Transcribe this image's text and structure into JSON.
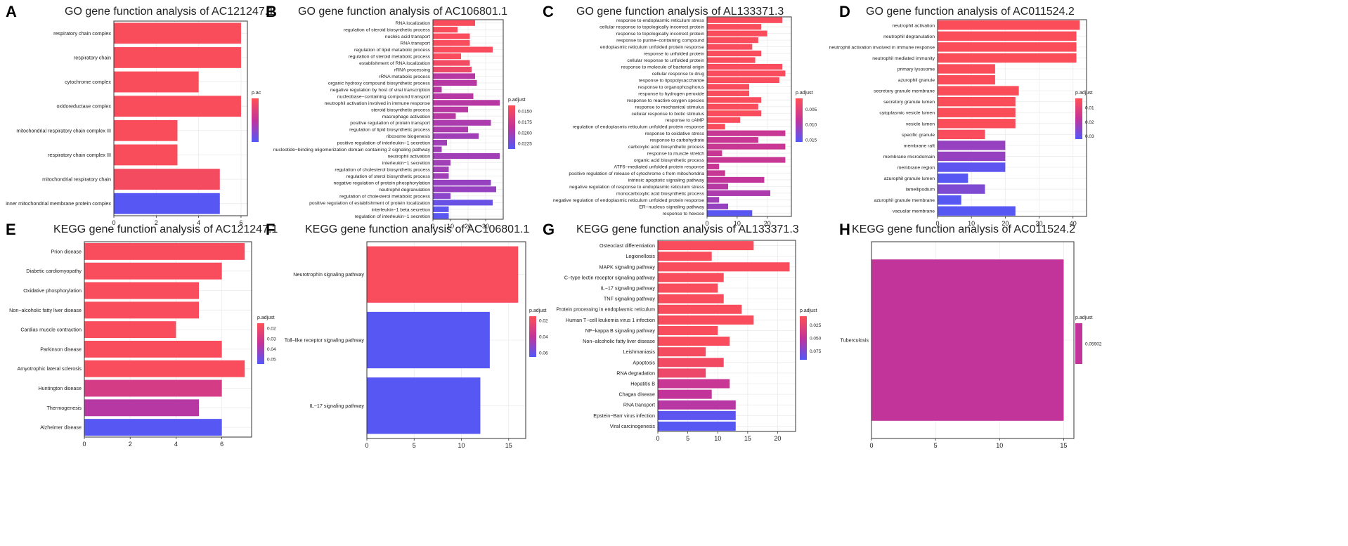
{
  "colors": {
    "high": "#ff4f55",
    "mid": "#c2349a",
    "low": "#5358f8",
    "grid": "#ebebeb",
    "frame": "#333333"
  },
  "chart_data": [
    {
      "type": "bar",
      "letter": "A",
      "title": "GO gene function analysis of AC121247.1",
      "categories": [
        "respiratory chain complex",
        "respiratory chain",
        "cytochrome complex",
        "oxidoreductase complex",
        "mitochondrial respiratory chain complex III",
        "respiratory chain complex III",
        "mitochondrial respiratory chain",
        "inner mitochondrial membrane protein complex"
      ],
      "values": [
        6,
        6,
        4,
        6,
        3,
        3,
        5,
        5
      ],
      "color_pos": [
        0.04,
        0.04,
        0.04,
        0.04,
        0.04,
        0.04,
        0.08,
        0.98
      ],
      "xlim": [
        0,
        6.3
      ],
      "xticks": [
        0,
        2,
        4,
        6
      ],
      "legend": {
        "title": "p.ac",
        "ticks": [],
        "tick_pos": []
      }
    },
    {
      "type": "bar",
      "letter": "B",
      "title": "GO gene function analysis of AC106801.1",
      "categories": [
        "RNA localization",
        "regulation of steroid biosynthetic process",
        "nucleic acid transport",
        "RNA transport",
        "regulation of lipid metabolic process",
        "regulation of steroid metabolic process",
        "establishment of RNA localization",
        "rRNA processing",
        "rRNA metabolic process",
        "organic hydroxy compound biosynthetic process",
        "negative regulation by host of viral transcription",
        "nucleobase−containing compound transport",
        "neutrophil activation involved in immune response",
        "steroid biosynthetic process",
        "macrophage activation",
        "positive regulation of protein transport",
        "regulation of lipid biosynthetic process",
        "ribosome biogenesis",
        "positive regulation of interleukin−1 secretion",
        "nucleotide−binding oligomerization domain containing 2 signaling pathway",
        "neutrophil activation",
        "interleukin−1 secretion",
        "regulation of cholesterol biosynthetic process",
        "regulation of sterol biosynthetic process",
        "negative regulation of protein phosphorylation",
        "neutrophil degranulation",
        "regulation of cholesterol metabolic process",
        "positive regulation of establishment of protein localization",
        "interleukin−1 beta secretion",
        "regulation of interleukin−1 secretion"
      ],
      "values": [
        24,
        14,
        21,
        21,
        34,
        16,
        21,
        22,
        24,
        25,
        5,
        23,
        38,
        20,
        13,
        33,
        20,
        26,
        8,
        5,
        38,
        10,
        9,
        9,
        33,
        36,
        10,
        34,
        9,
        9
      ],
      "color_pos": [
        0.05,
        0.05,
        0.05,
        0.05,
        0.05,
        0.05,
        0.1,
        0.15,
        0.55,
        0.55,
        0.55,
        0.55,
        0.55,
        0.55,
        0.55,
        0.6,
        0.6,
        0.65,
        0.65,
        0.65,
        0.65,
        0.65,
        0.65,
        0.65,
        0.7,
        0.7,
        0.75,
        0.9,
        0.95,
        0.97
      ],
      "xlim": [
        0,
        40
      ],
      "xticks": [
        0,
        10,
        20,
        30
      ],
      "legend": {
        "title": "p.adjust",
        "ticks": [
          "0.0150",
          "0.0175",
          "0.0200",
          "0.0225"
        ],
        "tick_pos": [
          0.13,
          0.38,
          0.63,
          0.87
        ]
      }
    },
    {
      "type": "bar",
      "letter": "C",
      "title": "GO gene function analysis of AL133371.3",
      "categories": [
        "response to endoplasmic reticulum stress",
        "cellular response to topologically incorrect protein",
        "response to topologically incorrect protein",
        "response to purine−containing compound",
        "endoplasmic reticulum unfolded protein response",
        "response to unfolded protein",
        "cellular response to unfolded protein",
        "response to molecule of bacterial origin",
        "cellular response to drug",
        "response to lipopolysaccharide",
        "response to organophosphorus",
        "response to hydrogen peroxide",
        "response to reactive oxygen species",
        "response to mechanical stimulus",
        "cellular response to biotic stimulus",
        "response to cAMP",
        "regulation of endoplasmic reticulum unfolded protein response",
        "response to oxidative stress",
        "response to carbohydrate",
        "carboxylic acid biosynthetic process",
        "response to muscle stretch",
        "organic acid biosynthetic process",
        "ATF6−mediated unfolded protein response",
        "positive regulation of release of cytochrome c from mitochondria",
        "intrinsic apoptotic signaling pathway",
        "negative regulation of response to endoplasmic reticulum stress",
        "monocarboxylic acid biosynthetic process",
        "negative regulation of endoplasmic reticulum unfolded protein response",
        "ER−nucleus signaling pathway",
        "response to hexose"
      ],
      "values": [
        25,
        18,
        20,
        17,
        15,
        18,
        16,
        25,
        26,
        24,
        14,
        14,
        18,
        17,
        18,
        11,
        6,
        26,
        17,
        26,
        5,
        26,
        4,
        6,
        19,
        7,
        21,
        4,
        7,
        15
      ],
      "color_pos": [
        0.05,
        0.05,
        0.05,
        0.05,
        0.05,
        0.05,
        0.05,
        0.05,
        0.05,
        0.05,
        0.05,
        0.05,
        0.05,
        0.05,
        0.05,
        0.05,
        0.05,
        0.45,
        0.45,
        0.45,
        0.45,
        0.45,
        0.45,
        0.45,
        0.5,
        0.55,
        0.6,
        0.65,
        0.7,
        0.97
      ],
      "xlim": [
        0,
        28
      ],
      "xticks": [
        0,
        10,
        20
      ],
      "legend": {
        "title": "p.adjust",
        "ticks": [
          "0.005",
          "0.010",
          "0.015"
        ],
        "tick_pos": [
          0.25,
          0.6,
          0.95
        ]
      }
    },
    {
      "type": "bar",
      "letter": "D",
      "title": "GO gene function analysis of AC011524.2",
      "categories": [
        "neutrophil activation",
        "neutrophil degranulation",
        "neutrophil activation involved in immune response",
        "neutrophil mediated immunity",
        "primary lysosome",
        "azurophil granule",
        "secretory granule membrane",
        "secretory granule lumen",
        "cytoplasmic vesicle lumen",
        "vesicle lumen",
        "specific granule",
        "membrane raft",
        "membrane microdomain",
        "membrane region",
        "azurophil granule lumen",
        "lamellipodium",
        "azurophil granule membrane",
        "vacuolar membrane"
      ],
      "values": [
        42,
        41,
        41,
        41,
        17,
        17,
        24,
        23,
        23,
        23,
        14,
        20,
        20,
        20,
        9,
        14,
        7,
        23
      ],
      "color_pos": [
        0.03,
        0.03,
        0.03,
        0.03,
        0.03,
        0.03,
        0.03,
        0.03,
        0.03,
        0.03,
        0.05,
        0.7,
        0.7,
        0.95,
        0.98,
        0.8,
        0.98,
        0.98
      ],
      "xlim": [
        0,
        44
      ],
      "xticks": [
        0,
        10,
        20,
        30,
        40
      ],
      "legend": {
        "title": "p.adjust",
        "ticks": [
          "0.01",
          "0.02",
          "0.03"
        ],
        "tick_pos": [
          0.22,
          0.58,
          0.92
        ]
      }
    },
    {
      "type": "bar",
      "letter": "E",
      "title": "KEGG gene function analysis of AC121247.1",
      "categories": [
        "Prion disease",
        "Diabetic cardiomyopathy",
        "Oxidative phosphorylation",
        "Non−alcoholic fatty liver disease",
        "Cardiac muscle contraction",
        "Parkinson disease",
        "Amyotrophic lateral sclerosis",
        "Huntington disease",
        "Thermogenesis",
        "Alzheimer disease"
      ],
      "values": [
        7,
        6,
        5,
        5,
        4,
        6,
        7,
        6,
        5,
        6
      ],
      "color_pos": [
        0.05,
        0.05,
        0.05,
        0.05,
        0.05,
        0.05,
        0.05,
        0.35,
        0.55,
        0.98
      ],
      "xlim": [
        0,
        7.3
      ],
      "xticks": [
        0,
        2,
        4,
        6
      ],
      "legend": {
        "title": "p.adjust",
        "ticks": [
          "0.02",
          "0.03",
          "0.04",
          "0.05"
        ],
        "tick_pos": [
          0.12,
          0.38,
          0.63,
          0.88
        ]
      }
    },
    {
      "type": "bar",
      "letter": "F",
      "title": "KEGG gene function analysis of AC106801.1",
      "categories": [
        "Neurotrophin signaling pathway",
        "Toll−like receptor signaling pathway",
        "IL−17 signaling pathway"
      ],
      "values": [
        16,
        13,
        12
      ],
      "color_pos": [
        0.05,
        0.98,
        0.98
      ],
      "xlim": [
        0,
        16.8
      ],
      "xticks": [
        0,
        5,
        10,
        15
      ],
      "legend": {
        "title": "p.adjust",
        "ticks": [
          "0.02",
          "0.04",
          "0.06"
        ],
        "tick_pos": [
          0.1,
          0.5,
          0.9
        ]
      }
    },
    {
      "type": "bar",
      "letter": "G",
      "title": "KEGG gene function analysis of AL133371.3",
      "categories": [
        "Osteoclast differentiation",
        "Legionellosis",
        "MAPK signaling pathway",
        "C−type lectin receptor signaling pathway",
        "IL−17 signaling pathway",
        "TNF signaling pathway",
        "Protein processing in endoplasmic reticulum",
        "Human T−cell leukemia virus 1 infection",
        "NF−kappa B signaling pathway",
        "Non−alcoholic fatty liver disease",
        "Leishmaniasis",
        "Apoptosis",
        "RNA degradation",
        "Hepatitis B",
        "Chagas disease",
        "RNA transport",
        "Epstein−Barr virus infection",
        "Viral carcinogenesis"
      ],
      "values": [
        16,
        9,
        22,
        11,
        10,
        11,
        14,
        16,
        10,
        12,
        8,
        11,
        8,
        12,
        9,
        13,
        13,
        13
      ],
      "color_pos": [
        0.05,
        0.05,
        0.05,
        0.05,
        0.05,
        0.05,
        0.05,
        0.05,
        0.05,
        0.05,
        0.08,
        0.1,
        0.15,
        0.45,
        0.5,
        0.55,
        0.95,
        0.98
      ],
      "xlim": [
        0,
        23
      ],
      "xticks": [
        0,
        5,
        10,
        15,
        20
      ],
      "legend": {
        "title": "p.adjust",
        "ticks": [
          "0.025",
          "0.050",
          "0.075"
        ],
        "tick_pos": [
          0.2,
          0.5,
          0.8
        ]
      }
    },
    {
      "type": "bar",
      "letter": "H",
      "title": "KEGG gene function analysis of AC011524.2",
      "categories": [
        "Tuberculosis"
      ],
      "values": [
        15
      ],
      "color_pos": [
        0.5
      ],
      "xlim": [
        0,
        15.8
      ],
      "xticks": [
        0,
        5,
        10,
        15
      ],
      "legend": {
        "title": "p.adjust",
        "ticks": [
          "0.05902"
        ],
        "tick_pos": [
          0.5
        ],
        "single": true
      }
    }
  ]
}
